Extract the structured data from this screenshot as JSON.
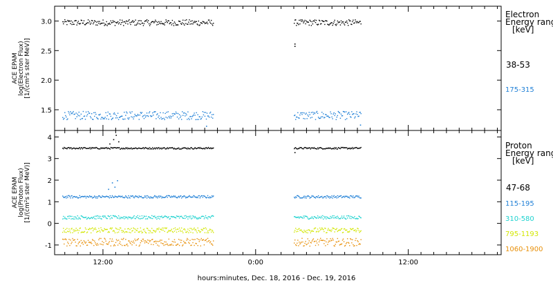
{
  "chart_data": [
    {
      "type": "scatter",
      "panel": "electron",
      "ylabel_lines": [
        "ACE EPAM",
        "log(Electron Flux)",
        "[1/(cm²s ster MeV)]"
      ],
      "ylim": [
        1.15,
        3.25
      ],
      "yticks": [
        1.5,
        2.0,
        2.5,
        3.0
      ],
      "ytick_labels": [
        "1.5",
        "2.0",
        "2.5",
        "3.0"
      ],
      "legend_title_lines": [
        "Electron",
        "Energy ranges",
        "[keV]"
      ],
      "series": [
        {
          "name": "38-53",
          "color": "#000000",
          "center": 2.98,
          "spread": 0.05
        },
        {
          "name": "175-315",
          "color": "#1e7fd6",
          "center": 1.41,
          "spread": 0.07
        }
      ],
      "extra_points": [
        {
          "series": 0,
          "x_hours": 27.05,
          "y": 2.58
        },
        {
          "series": 0,
          "x_hours": 27.05,
          "y": 2.62
        },
        {
          "series": 1,
          "x_hours": 20.1,
          "y": 1.23
        },
        {
          "series": 1,
          "x_hours": 32.2,
          "y": 1.25
        }
      ]
    },
    {
      "type": "scatter",
      "panel": "proton",
      "ylabel_lines": [
        "ACE EPAM",
        "log(Proton Flux)",
        "[1/(cm²s ster MeV)]"
      ],
      "ylim": [
        -1.45,
        4.3
      ],
      "yticks": [
        -1,
        0,
        1,
        2,
        3,
        4
      ],
      "ytick_labels": [
        "-1",
        "0",
        "1",
        "2",
        "3",
        "4"
      ],
      "legend_title_lines": [
        "Proton",
        "Energy ranges",
        "[keV]"
      ],
      "series": [
        {
          "name": "47-68",
          "color": "#000000",
          "center": 3.5,
          "spread": 0.04
        },
        {
          "name": "115-195",
          "color": "#1e7fd6",
          "center": 1.25,
          "spread": 0.06
        },
        {
          "name": "310-580",
          "color": "#1ed2cf",
          "center": 0.3,
          "spread": 0.08
        },
        {
          "name": "795-1193",
          "color": "#d2e600",
          "center": -0.3,
          "spread": 0.12
        },
        {
          "name": "1060-1900",
          "color": "#e8900a",
          "center": -0.85,
          "spread": 0.18
        }
      ],
      "extra_points": [
        {
          "series": 0,
          "x_hours": 12.5,
          "y": 3.7
        },
        {
          "series": 0,
          "x_hours": 12.8,
          "y": 3.9
        },
        {
          "series": 0,
          "x_hours": 13.0,
          "y": 4.1
        },
        {
          "series": 0,
          "x_hours": 13.2,
          "y": 3.8
        },
        {
          "series": 1,
          "x_hours": 12.4,
          "y": 1.6
        },
        {
          "series": 1,
          "x_hours": 12.7,
          "y": 1.9
        },
        {
          "series": 1,
          "x_hours": 12.9,
          "y": 1.7
        },
        {
          "series": 1,
          "x_hours": 13.1,
          "y": 2.0
        },
        {
          "series": 0,
          "x_hours": 27.05,
          "y": 3.3
        }
      ]
    }
  ],
  "x_axis": {
    "range_hours": [
      8.2,
      43.3
    ],
    "ticks_hours": [
      12,
      24,
      36
    ],
    "tick_labels": [
      "12:00",
      "0:00",
      "12:00"
    ],
    "minor_tick_step_hours": 1,
    "segments_hours": [
      [
        8.8,
        20.7
      ],
      [
        27.0,
        32.3
      ]
    ],
    "label": "hours:minutes, Dec. 18, 2016 - Dec. 19, 2016"
  },
  "x_axis_label": "hours:minutes, Dec. 18, 2016 - Dec. 19, 2016"
}
